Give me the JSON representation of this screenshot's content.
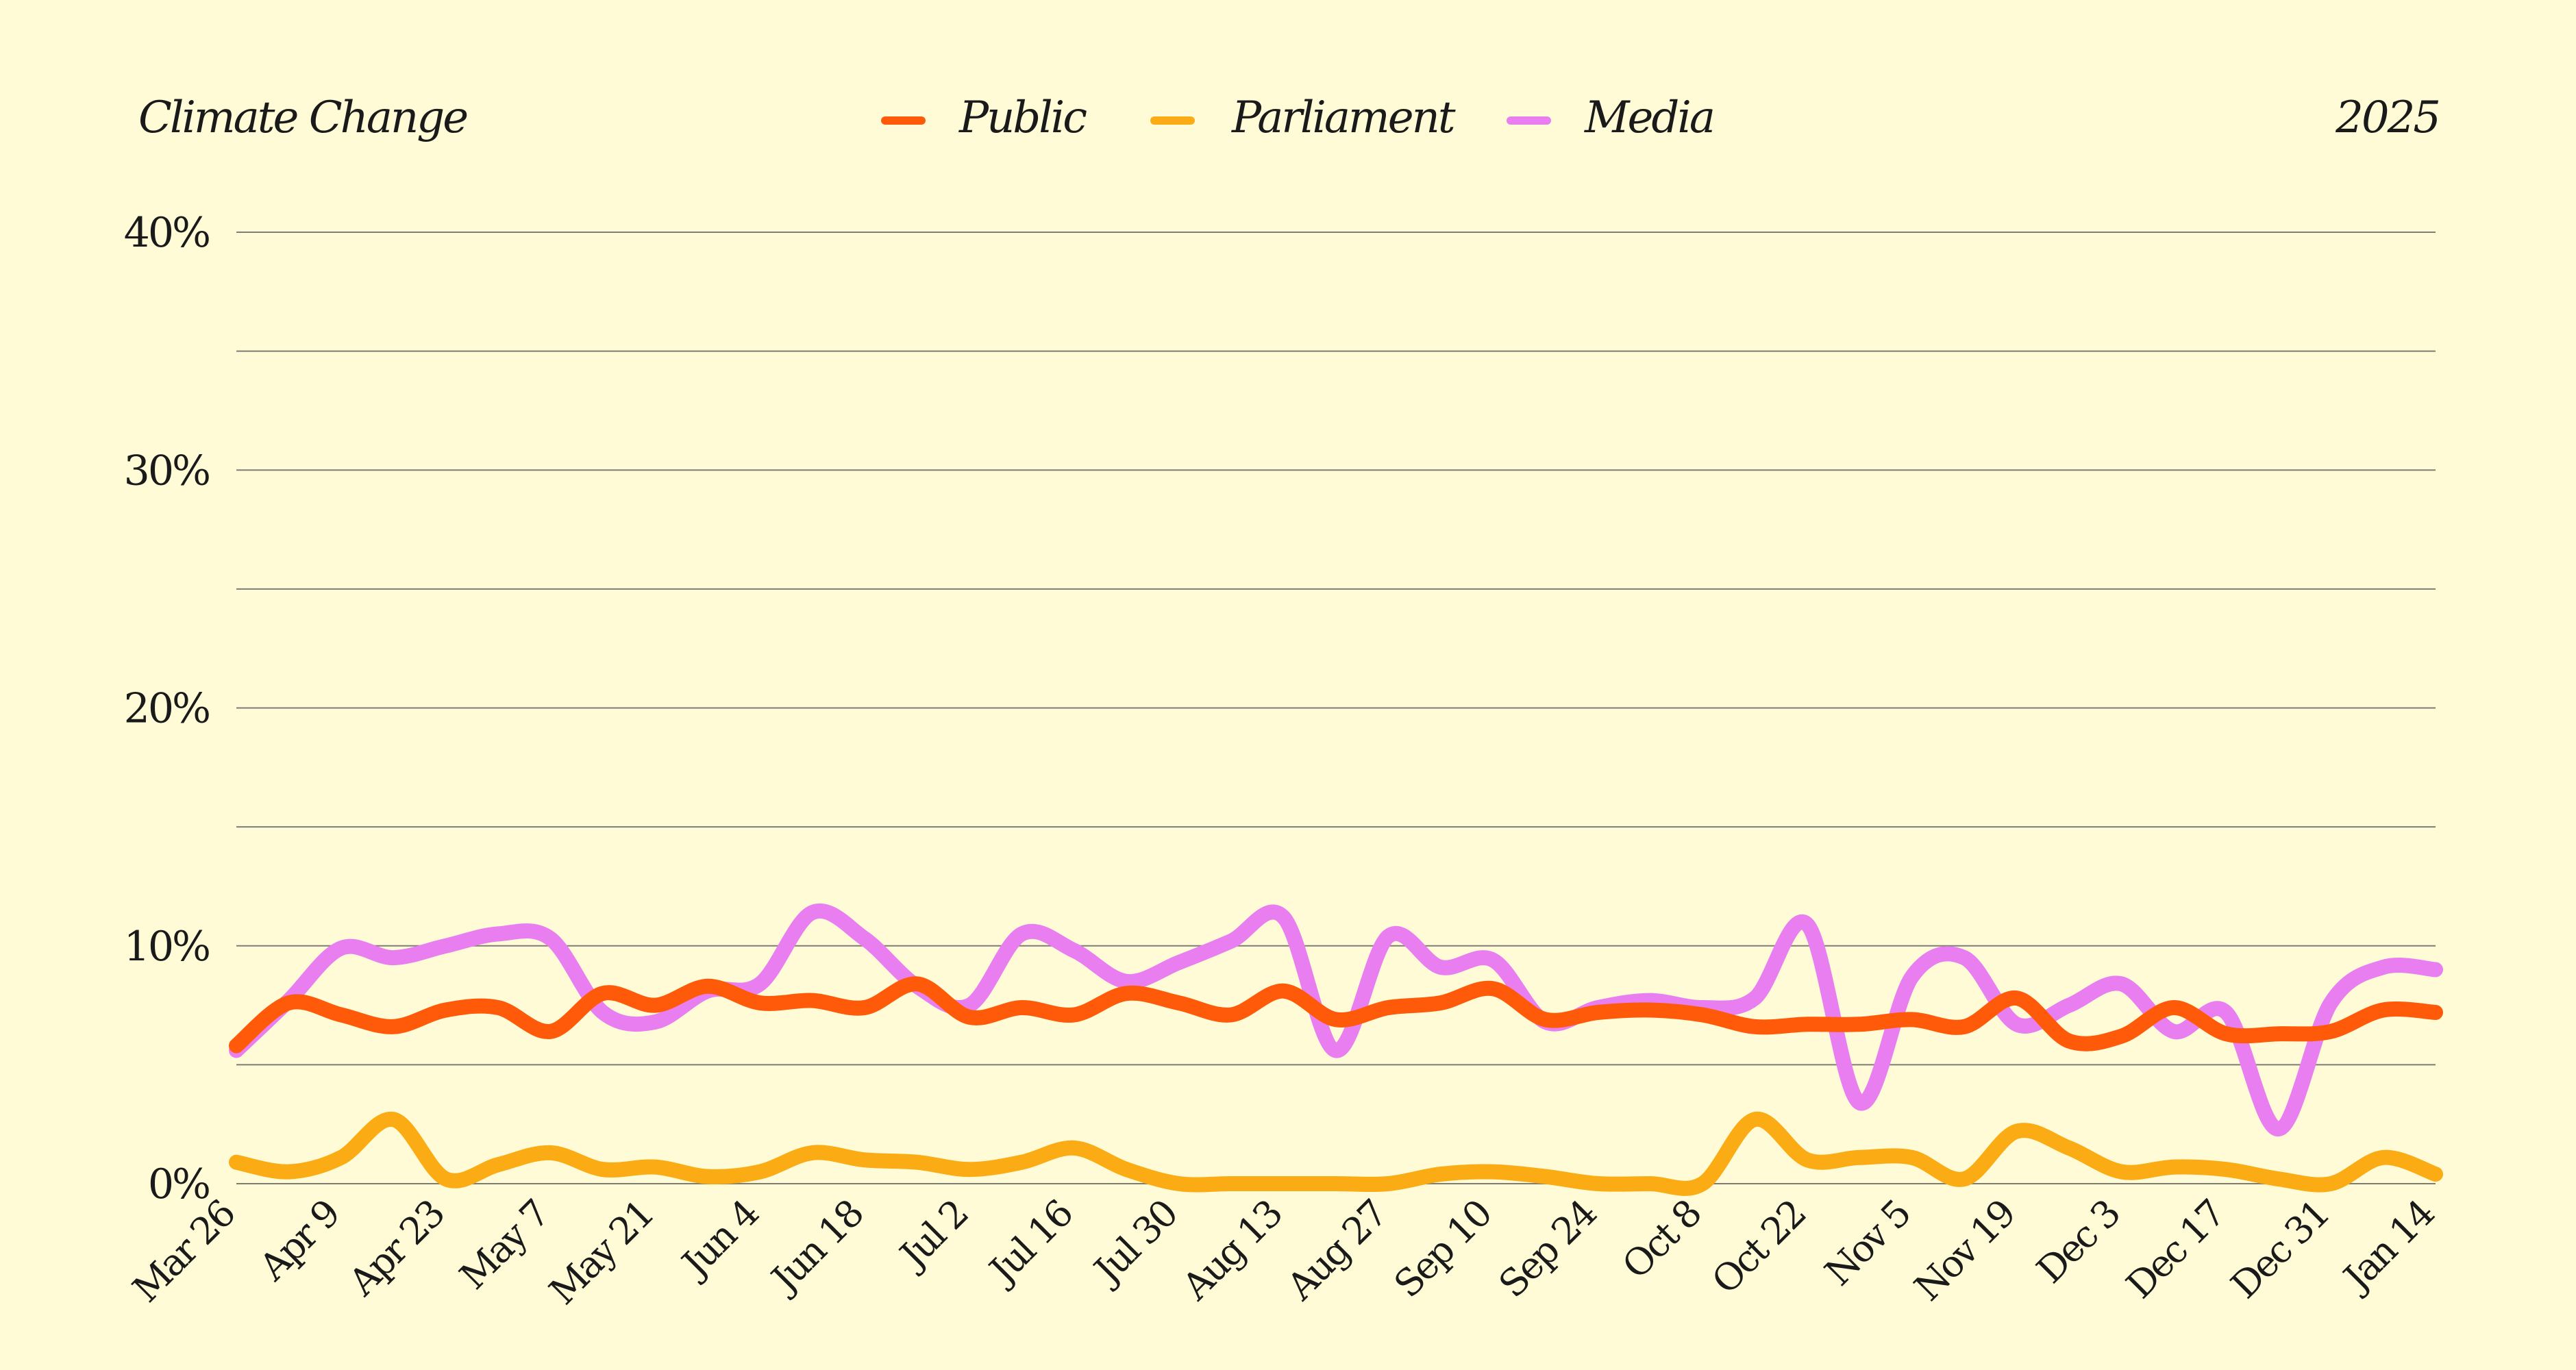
{
  "header": {
    "title": "Climate Change",
    "year": "2025"
  },
  "colors": {
    "background": "#fefbd6",
    "public": "#ff5a0a",
    "parliament": "#fbab13",
    "media": "#e97ef0"
  },
  "chart_data": {
    "type": "line",
    "title": "Climate Change",
    "subtitle": "2025",
    "xlabel": "",
    "ylabel": "",
    "ylim": [
      0,
      40
    ],
    "y_ticks": [
      "0%",
      "10%",
      "20%",
      "30%",
      "40%"
    ],
    "grid": true,
    "legend_position": "top-center",
    "x_tick_labels": [
      "Mar 26",
      "Apr 9",
      "Apr 23",
      "May 7",
      "May 21",
      "Jun 4",
      "Jun 18",
      "Jul 2",
      "Jul 16",
      "Jul 30",
      "Aug 13",
      "Aug 27",
      "Sep 10",
      "Sep 24",
      "Oct 8",
      "Oct 22",
      "Nov 5",
      "Nov 19",
      "Dec 3",
      "Dec 17",
      "Dec 31",
      "Jan 14"
    ],
    "x": [
      "Mar 26",
      "Apr 2",
      "Apr 9",
      "Apr 16",
      "Apr 23",
      "Apr 30",
      "May 7",
      "May 14",
      "May 21",
      "May 28",
      "Jun 4",
      "Jun 11",
      "Jun 18",
      "Jun 25",
      "Jul 2",
      "Jul 9",
      "Jul 16",
      "Jul 23",
      "Jul 30",
      "Aug 6",
      "Aug 13",
      "Aug 20",
      "Aug 27",
      "Sep 3",
      "Sep 10",
      "Sep 17",
      "Sep 24",
      "Oct 1",
      "Oct 8",
      "Oct 15",
      "Oct 22",
      "Oct 29",
      "Nov 5",
      "Nov 12",
      "Nov 19",
      "Nov 26",
      "Dec 3",
      "Dec 10",
      "Dec 17",
      "Dec 24",
      "Dec 31",
      "Jan 7",
      "Jan 14"
    ],
    "series": [
      {
        "name": "Public",
        "color": "#ff5a0a",
        "values": [
          5.8,
          7.6,
          7.1,
          6.6,
          7.3,
          7.4,
          6.4,
          8.0,
          7.5,
          8.3,
          7.6,
          7.7,
          7.4,
          8.4,
          7.0,
          7.4,
          7.1,
          8.0,
          7.6,
          7.1,
          8.1,
          6.9,
          7.4,
          7.6,
          8.2,
          6.9,
          7.2,
          7.3,
          7.1,
          6.6,
          6.7,
          6.7,
          6.9,
          6.6,
          7.8,
          6.0,
          6.2,
          7.4,
          6.3,
          6.3,
          6.4,
          7.3,
          7.2
        ]
      },
      {
        "name": "Parliament",
        "color": "#fbab13",
        "values": [
          0.9,
          0.5,
          1.1,
          2.7,
          0.2,
          0.8,
          1.3,
          0.6,
          0.7,
          0.3,
          0.5,
          1.3,
          1.0,
          0.9,
          0.6,
          0.9,
          1.5,
          0.6,
          0.0,
          0.0,
          0.0,
          0.0,
          0.0,
          0.4,
          0.5,
          0.3,
          0.0,
          0.0,
          0.0,
          2.7,
          1.0,
          1.1,
          1.1,
          0.2,
          2.2,
          1.5,
          0.5,
          0.7,
          0.6,
          0.2,
          0.0,
          1.1,
          0.4
        ]
      },
      {
        "name": "Media",
        "color": "#e97ef0",
        "values": [
          5.6,
          7.7,
          9.9,
          9.5,
          10.0,
          10.5,
          10.3,
          7.2,
          6.8,
          8.1,
          8.4,
          11.4,
          10.3,
          8.3,
          7.5,
          10.5,
          9.8,
          8.5,
          9.3,
          10.2,
          11.2,
          5.6,
          10.4,
          9.1,
          9.4,
          6.8,
          7.4,
          7.7,
          7.4,
          7.8,
          10.9,
          3.4,
          8.7,
          9.5,
          6.7,
          7.5,
          8.4,
          6.4,
          7.2,
          2.3,
          7.6,
          9.1,
          9.0
        ]
      }
    ]
  }
}
